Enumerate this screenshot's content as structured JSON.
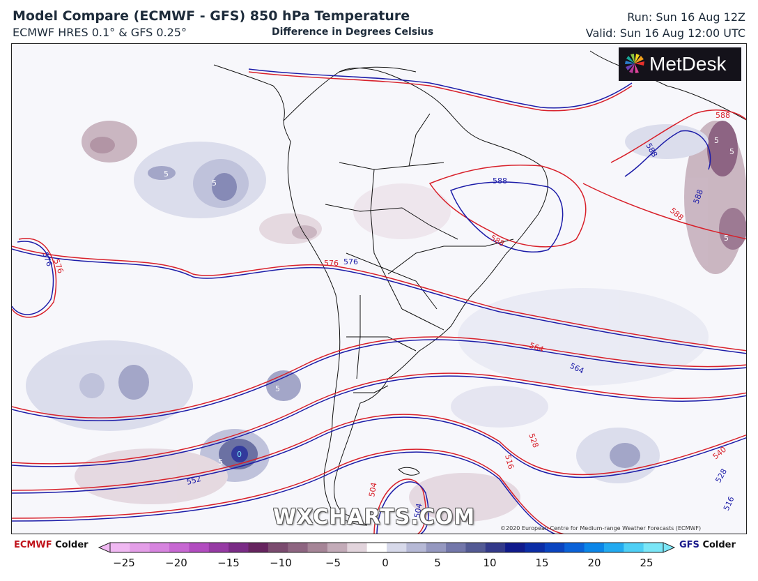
{
  "header": {
    "title": "Model Compare (ECMWF - GFS) 850 hPa Temperature",
    "subtitle": "ECMWF HRES 0.1° & GFS 0.25°",
    "center_note": "Difference in Degrees Celsius",
    "run": "Run: Sun 16 Aug 12Z",
    "valid": "Valid: Sun 16 Aug 12:00 UTC"
  },
  "logo": {
    "text": "MetDesk",
    "icon": "metdesk-logo-icon"
  },
  "watermark": "WXCHARTS.COM",
  "copyright": "©2020 European Centre for Medium-range Weather Forecasts (ECMWF)",
  "colors": {
    "ecmwf_contour": "#d8202a",
    "gfs_contour": "#1c1ca8",
    "colder_ecmwf": "#c0141c",
    "colder_gfs": "#1a1a8c",
    "map_background": "#f7f7fb",
    "coastline": "#111111"
  },
  "contour_labels": [
    "576",
    "576",
    "576",
    "576",
    "588",
    "588",
    "588",
    "588",
    "588",
    "588",
    "564",
    "564",
    "552",
    "540",
    "528",
    "528",
    "516",
    "516",
    "504",
    "504",
    "5",
    "5",
    "5",
    "5",
    "5",
    "5",
    "5",
    "0"
  ],
  "legend": {
    "left_model": "ECMWF",
    "left_text": "Colder",
    "right_model": "GFS",
    "right_text": "Colder",
    "ticks": [
      "−25",
      "−20",
      "−15",
      "−10",
      "−5",
      "0",
      "5",
      "10",
      "15",
      "20",
      "25"
    ],
    "tick_values": [
      -25,
      -20,
      -15,
      -10,
      -5,
      0,
      5,
      10,
      15,
      20,
      25
    ],
    "colors_negative": [
      "#f0b8f2",
      "#e49ee8",
      "#d784df",
      "#c767d2",
      "#b24cc0",
      "#963aa4",
      "#7a2b86",
      "#66245f",
      "#7b4b6f",
      "#8e6581",
      "#a68597",
      "#c3abb8",
      "#e2d4dc"
    ],
    "colors_positive": [
      "#d7d9ea",
      "#b6b9d6",
      "#9598c0",
      "#7377aa",
      "#535a94",
      "#33398a",
      "#101a8c",
      "#0b2da6",
      "#0a44c0",
      "#0a62d8",
      "#0b86e8",
      "#22aaf0",
      "#4ecff5",
      "#7ae6f7"
    ]
  }
}
